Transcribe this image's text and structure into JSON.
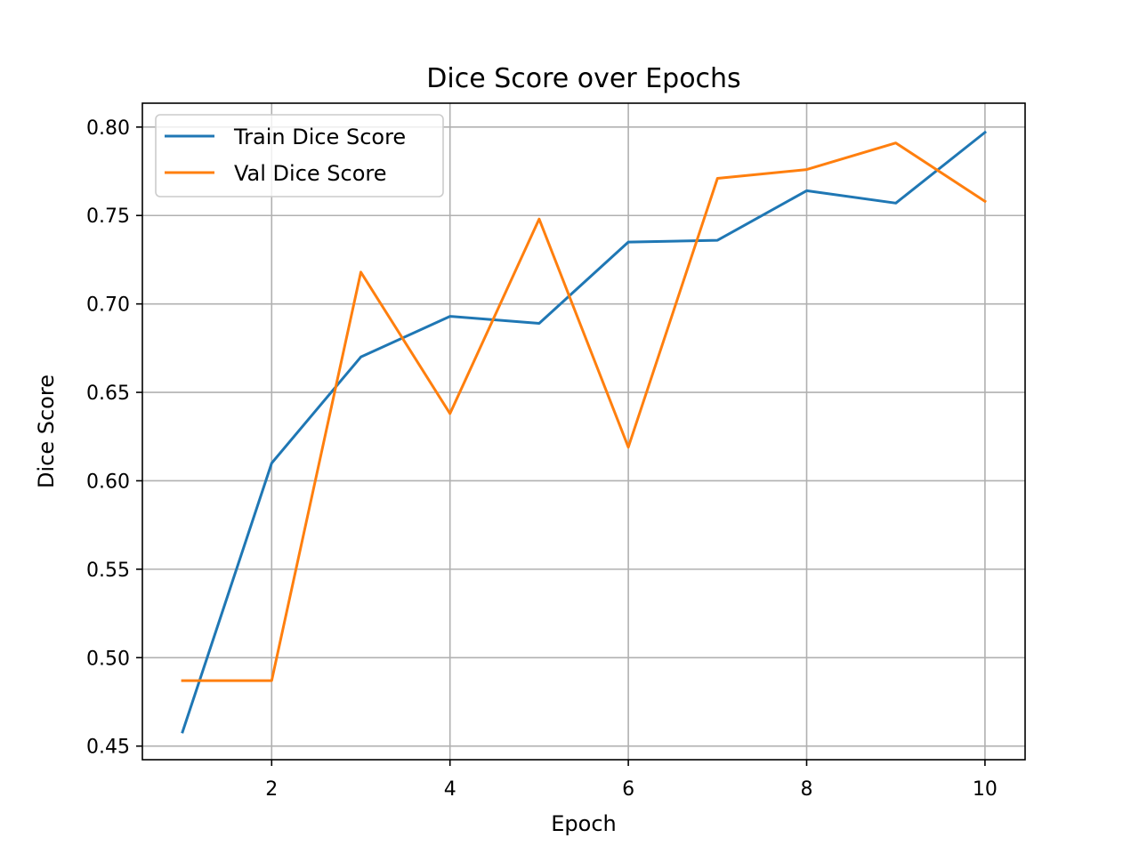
{
  "chart_data": {
    "type": "line",
    "title": "Dice Score over Epochs",
    "xlabel": "Epoch",
    "ylabel": "Dice Score",
    "x": [
      1,
      2,
      3,
      4,
      5,
      6,
      7,
      8,
      9,
      10
    ],
    "xlim": [
      0.55,
      10.45
    ],
    "ylim": [
      0.4423,
      0.8135
    ],
    "xticks": [
      2,
      4,
      6,
      8,
      10
    ],
    "xtick_labels": [
      "2",
      "4",
      "6",
      "8",
      "10"
    ],
    "yticks": [
      0.45,
      0.5,
      0.55,
      0.6,
      0.65,
      0.7,
      0.75,
      0.8
    ],
    "ytick_labels": [
      "0.45",
      "0.50",
      "0.55",
      "0.60",
      "0.65",
      "0.70",
      "0.75",
      "0.80"
    ],
    "grid": true,
    "legend_position": "top-left",
    "series": [
      {
        "name": "Train Dice Score",
        "color": "#1f77b4",
        "values": [
          0.458,
          0.61,
          0.67,
          0.693,
          0.689,
          0.735,
          0.736,
          0.764,
          0.757,
          0.797
        ]
      },
      {
        "name": "Val Dice Score",
        "color": "#ff7f0e",
        "values": [
          0.487,
          0.487,
          0.718,
          0.638,
          0.748,
          0.619,
          0.771,
          0.776,
          0.791,
          0.758
        ]
      }
    ]
  }
}
